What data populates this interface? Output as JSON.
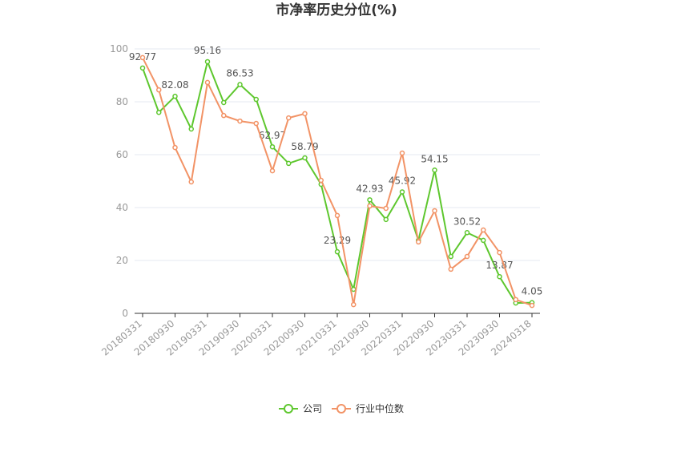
{
  "chart_data": {
    "type": "line",
    "title": "市净率历史分位(%)",
    "categories": [
      "20180331",
      null,
      "20180930",
      null,
      "20190331",
      null,
      "20190930",
      null,
      "20200331",
      null,
      "20200930",
      null,
      "20210331",
      null,
      "20210930",
      null,
      "20220331",
      null,
      "20220930",
      null,
      "20230331",
      null,
      "20230930",
      null,
      "20240318"
    ],
    "series": [
      {
        "name": "公司",
        "color": "#5ec72e",
        "values": [
          92.77,
          76,
          82.08,
          69.7,
          95.16,
          79.7,
          86.53,
          80.9,
          62.97,
          56.7,
          58.79,
          48.8,
          23.29,
          9.1,
          42.93,
          35.5,
          45.92,
          27.6,
          54.15,
          21.5,
          30.52,
          27.6,
          13.87,
          3.9,
          4.05
        ]
      },
      {
        "name": "行业中位数",
        "color": "#f29366",
        "values": [
          96.7,
          84.5,
          62.7,
          49.7,
          87.3,
          74.8,
          72.7,
          71.8,
          53.9,
          73.9,
          75.5,
          50.3,
          37,
          3.3,
          40.6,
          39.7,
          60.6,
          27,
          38.8,
          16.7,
          21.5,
          31.5,
          23,
          5.2,
          3
        ]
      }
    ],
    "ylim": [
      0,
      100
    ],
    "yticks": [
      0,
      20,
      40,
      60,
      80,
      100
    ],
    "grid": true,
    "legend": "bottom"
  }
}
